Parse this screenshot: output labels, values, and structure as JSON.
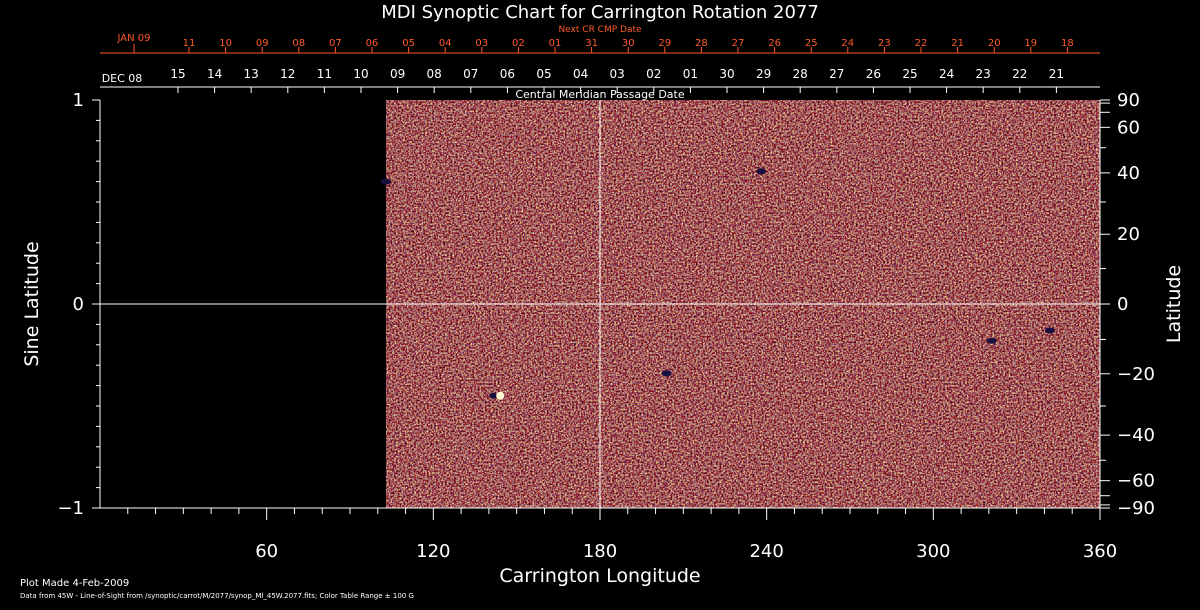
{
  "chart_data": {
    "type": "heatmap",
    "title": "MDI Synoptic Chart for Carrington Rotation 2077",
    "xlabel": "Carrington Longitude",
    "ylabel_left": "Sine Latitude",
    "ylabel_right": "Latitude",
    "xlim": [
      0,
      360
    ],
    "ylim": [
      -1,
      1
    ],
    "x_ticks": [
      "60",
      "120",
      "180",
      "240",
      "300",
      "360"
    ],
    "y_ticks_left": [
      "1",
      "0",
      "−1"
    ],
    "y_ticks_right": [
      "90",
      "60",
      "40",
      "20",
      "0",
      "−20",
      "−40",
      "−60",
      "−90"
    ],
    "data_longitude_range": [
      103,
      360
    ],
    "no_data_longitude_range": [
      0,
      103
    ],
    "crosshair": {
      "longitude": 180,
      "sine_latitude": 0
    },
    "bottom_date_axis": {
      "label": "Central Meridian Passage Date",
      "month_labels": [
        "DEC 08"
      ],
      "day_labels": [
        "15",
        "14",
        "13",
        "12",
        "11",
        "10",
        "09",
        "08",
        "07",
        "06",
        "05",
        "04",
        "03",
        "02",
        "01",
        "30",
        "29",
        "28",
        "27",
        "26",
        "25",
        "24",
        "23",
        "22",
        "21"
      ]
    },
    "top_date_axis": {
      "label": "Next CR CMP Date",
      "month_labels": [
        "JAN 09"
      ],
      "day_labels": [
        "11",
        "10",
        "09",
        "08",
        "07",
        "06",
        "05",
        "04",
        "03",
        "02",
        "01",
        "31",
        "30",
        "29",
        "28",
        "27",
        "26",
        "25",
        "24",
        "23",
        "22",
        "21",
        "20",
        "19",
        "18"
      ],
      "color": "#ff5a2a"
    },
    "magnetic_features": [
      {
        "longitude": 143,
        "sine_latitude": -0.45,
        "polarity": "bipolar"
      },
      {
        "longitude": 238,
        "sine_latitude": 0.65,
        "polarity": "negative"
      },
      {
        "longitude": 204,
        "sine_latitude": -0.34,
        "polarity": "negative"
      },
      {
        "longitude": 321,
        "sine_latitude": -0.18,
        "polarity": "negative"
      },
      {
        "longitude": 342,
        "sine_latitude": -0.13,
        "polarity": "negative"
      },
      {
        "longitude": 103,
        "sine_latitude": 0.6,
        "polarity": "negative"
      }
    ],
    "colors": {
      "field_base": "#ff5a10",
      "positive": "#ffe070",
      "negative": "#1a1040",
      "axes": "#ffffff",
      "no_data": "#000000"
    }
  },
  "footer": {
    "plot_made": "Plot Made  4-Feb-2009",
    "data_note": "Data from 45W - Line-of-Sight from /synoptic/carrot/M/2077/synop_Ml_45W.2077.fits; Color Table Range ± 100 G"
  }
}
